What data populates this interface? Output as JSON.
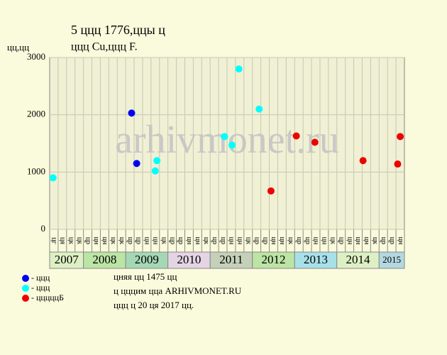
{
  "chart_data": {
    "type": "scatter",
    "title_lines": [
      "5 ццц 1776,ццы ц",
      "ццц Cu,ццц F."
    ],
    "y_label": "цц,цц",
    "watermark": "arhivmonet.ru",
    "ylim": [
      0,
      3000
    ],
    "yticks": [
      0,
      1000,
      2000,
      3000
    ],
    "grid": true,
    "xlim": [
      0,
      42
    ],
    "columns": [
      "цг",
      "ця",
      "цк",
      "цк",
      "цр",
      "цн",
      "цн",
      "цк",
      "цк",
      "цр",
      "цр",
      "цн",
      "цн",
      "цк",
      "цр",
      "цр",
      "цн",
      "цн",
      "цк",
      "цр",
      "цр",
      "цн",
      "цн",
      "цк",
      "цр",
      "цр",
      "цн",
      "цн",
      "цк",
      "цр",
      "цр",
      "цн",
      "цн",
      "цк",
      "цр",
      "цн",
      "цн",
      "цн",
      "цк",
      "цр",
      "цр",
      "цн"
    ],
    "years": [
      {
        "label": "2007",
        "range": [
          0,
          4
        ],
        "color": "#dcf0c4"
      },
      {
        "label": "2008",
        "range": [
          4,
          9
        ],
        "color": "#bce4a4"
      },
      {
        "label": "2009",
        "range": [
          9,
          14
        ],
        "color": "#a4d8b4"
      },
      {
        "label": "2010",
        "range": [
          14,
          19
        ],
        "color": "#e4d4e4"
      },
      {
        "label": "2011",
        "range": [
          19,
          24
        ],
        "color": "#c4d0b8"
      },
      {
        "label": "2012",
        "range": [
          24,
          29
        ],
        "color": "#bce4a4"
      },
      {
        "label": "2013",
        "range": [
          29,
          34
        ],
        "color": "#a8e0e8"
      },
      {
        "label": "2014",
        "range": [
          34,
          39
        ],
        "color": "#dcf0c4"
      },
      {
        "label": "2015",
        "range": [
          39,
          42
        ],
        "color": "#b4d8e0"
      }
    ],
    "series": [
      {
        "name": "- ццц",
        "color": "#0000ee",
        "x": [
          9.7,
          10.3
        ],
        "values": [
          2030,
          1150
        ]
      },
      {
        "name": "- ццц",
        "color": "#00ffff",
        "x": [
          0.4,
          12.5,
          12.7,
          20.7,
          21.6,
          22.4,
          24.8
        ],
        "values": [
          900,
          1020,
          1200,
          1620,
          1470,
          2800,
          2100
        ]
      },
      {
        "name": "- цццццБ",
        "color": "#ee0000",
        "x": [
          26.2,
          29.2,
          31.4,
          37.1,
          41.2,
          41.5
        ],
        "values": [
          670,
          1630,
          1520,
          1200,
          1140,
          1620
        ]
      }
    ],
    "notes": [
      "цняя цц 1475 цц",
      "ц цццим цца ARHIVMONET.RU",
      "ццц ц 20 ця 2017 цц."
    ]
  }
}
